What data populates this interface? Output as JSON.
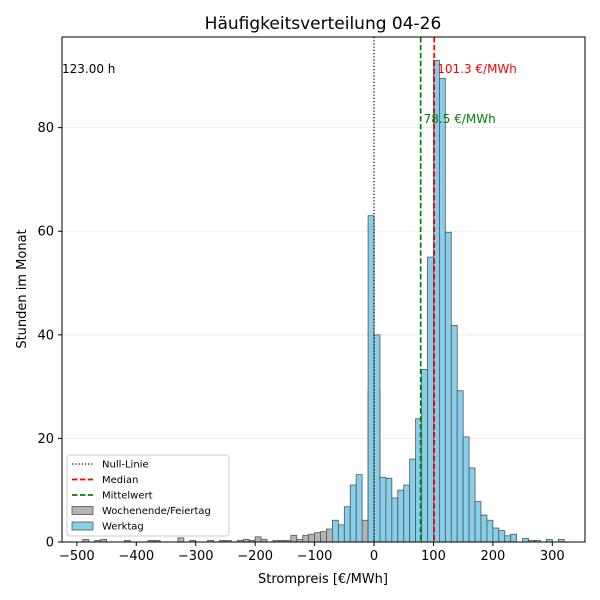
{
  "chart_data": {
    "type": "bar",
    "title": "Häufigkeitsverteilung 04-26",
    "xlabel": "Strompreis [€/MWh]",
    "ylabel": "Stunden im Monat",
    "xlim": [
      -525,
      355
    ],
    "ylim": [
      0,
      97.5
    ],
    "xticks": [
      -500,
      -400,
      -300,
      -200,
      -100,
      0,
      100,
      200,
      300
    ],
    "xtick_labels": [
      "−500",
      "−400",
      "−300",
      "−200",
      "−100",
      "0",
      "100",
      "200",
      "300"
    ],
    "yticks": [
      0,
      20,
      40,
      60,
      80
    ],
    "ytick_labels": [
      "0",
      "20",
      "40",
      "60",
      "80"
    ],
    "grid": "y-dotted",
    "legend_position": "lower-left",
    "bin_width": 10,
    "series": [
      {
        "name": "Wochenende/Feiertag",
        "color": "#b4b4b4",
        "bins": [
          [
            -485,
            0.5
          ],
          [
            -465,
            0.3
          ],
          [
            -455,
            0.5
          ],
          [
            -415,
            0.3
          ],
          [
            -375,
            0.3
          ],
          [
            -365,
            0.3
          ],
          [
            -325,
            0.8
          ],
          [
            -305,
            0.3
          ],
          [
            -275,
            0.3
          ],
          [
            -255,
            0.3
          ],
          [
            -245,
            0.3
          ],
          [
            -225,
            0.3
          ],
          [
            -215,
            0.5
          ],
          [
            -205,
            0.3
          ],
          [
            -195,
            1.0
          ],
          [
            -185,
            0.5
          ],
          [
            -165,
            0.3
          ],
          [
            -155,
            0.3
          ],
          [
            -145,
            0.3
          ],
          [
            -135,
            1.3
          ],
          [
            -125,
            0.5
          ],
          [
            -115,
            1.3
          ],
          [
            -105,
            1.5
          ],
          [
            -95,
            1.8
          ],
          [
            -85,
            2.0
          ],
          [
            -75,
            2.5
          ],
          [
            -65,
            1.5
          ],
          [
            -55,
            2.2
          ],
          [
            -45,
            2.0
          ],
          [
            -35,
            1.5
          ],
          [
            -25,
            2.5
          ],
          [
            -15,
            4.2
          ],
          [
            -5,
            29.2
          ],
          [
            5,
            29.5
          ],
          [
            15,
            9.0
          ],
          [
            25,
            6.5
          ],
          [
            35,
            5.0
          ],
          [
            45,
            3.8
          ],
          [
            55,
            3.0
          ],
          [
            65,
            9.0
          ],
          [
            75,
            11.0
          ],
          [
            85,
            14.0
          ],
          [
            95,
            16.2
          ],
          [
            105,
            19.2
          ],
          [
            115,
            19.5
          ],
          [
            125,
            13.2
          ],
          [
            135,
            8.0
          ],
          [
            145,
            4.8
          ],
          [
            155,
            1.8
          ],
          [
            165,
            1.8
          ],
          [
            175,
            0.8
          ],
          [
            185,
            0.5
          ],
          [
            195,
            0.3
          ],
          [
            205,
            0.3
          ]
        ]
      },
      {
        "name": "Werktag",
        "color": "#87ceeb",
        "bins": [
          [
            -65,
            4.2
          ],
          [
            -55,
            3.3
          ],
          [
            -45,
            6.8
          ],
          [
            -35,
            11.0
          ],
          [
            -25,
            13.0
          ],
          [
            -5,
            63.0
          ],
          [
            5,
            40.0
          ],
          [
            15,
            12.5
          ],
          [
            25,
            12.3
          ],
          [
            35,
            8.5
          ],
          [
            45,
            10.0
          ],
          [
            55,
            11.0
          ],
          [
            65,
            16.0
          ],
          [
            75,
            23.8
          ],
          [
            85,
            33.3
          ],
          [
            95,
            55.0
          ],
          [
            105,
            93.0
          ],
          [
            115,
            89.5
          ],
          [
            125,
            59.8
          ],
          [
            135,
            41.8
          ],
          [
            145,
            29.2
          ],
          [
            155,
            20.3
          ],
          [
            165,
            14.3
          ],
          [
            175,
            7.8
          ],
          [
            185,
            5.2
          ],
          [
            195,
            4.2
          ],
          [
            205,
            2.7
          ],
          [
            215,
            2.2
          ],
          [
            225,
            1.2
          ],
          [
            235,
            1.5
          ],
          [
            255,
            0.7
          ],
          [
            265,
            0.3
          ],
          [
            275,
            0.3
          ],
          [
            295,
            0.5
          ],
          [
            315,
            0.5
          ]
        ]
      }
    ],
    "lines": [
      {
        "name": "Null-Linie",
        "x": 0,
        "color": "#000000",
        "style": "dotted"
      },
      {
        "name": "Median",
        "x": 101.3,
        "color": "#ff0000",
        "style": "dashed",
        "label": "101.3 €/MWh"
      },
      {
        "name": "Mittelwert",
        "x": 78.5,
        "color": "#008000",
        "style": "dashed",
        "label": "78.5 €/MWh"
      }
    ],
    "corner_annotation": "123.00 h"
  }
}
